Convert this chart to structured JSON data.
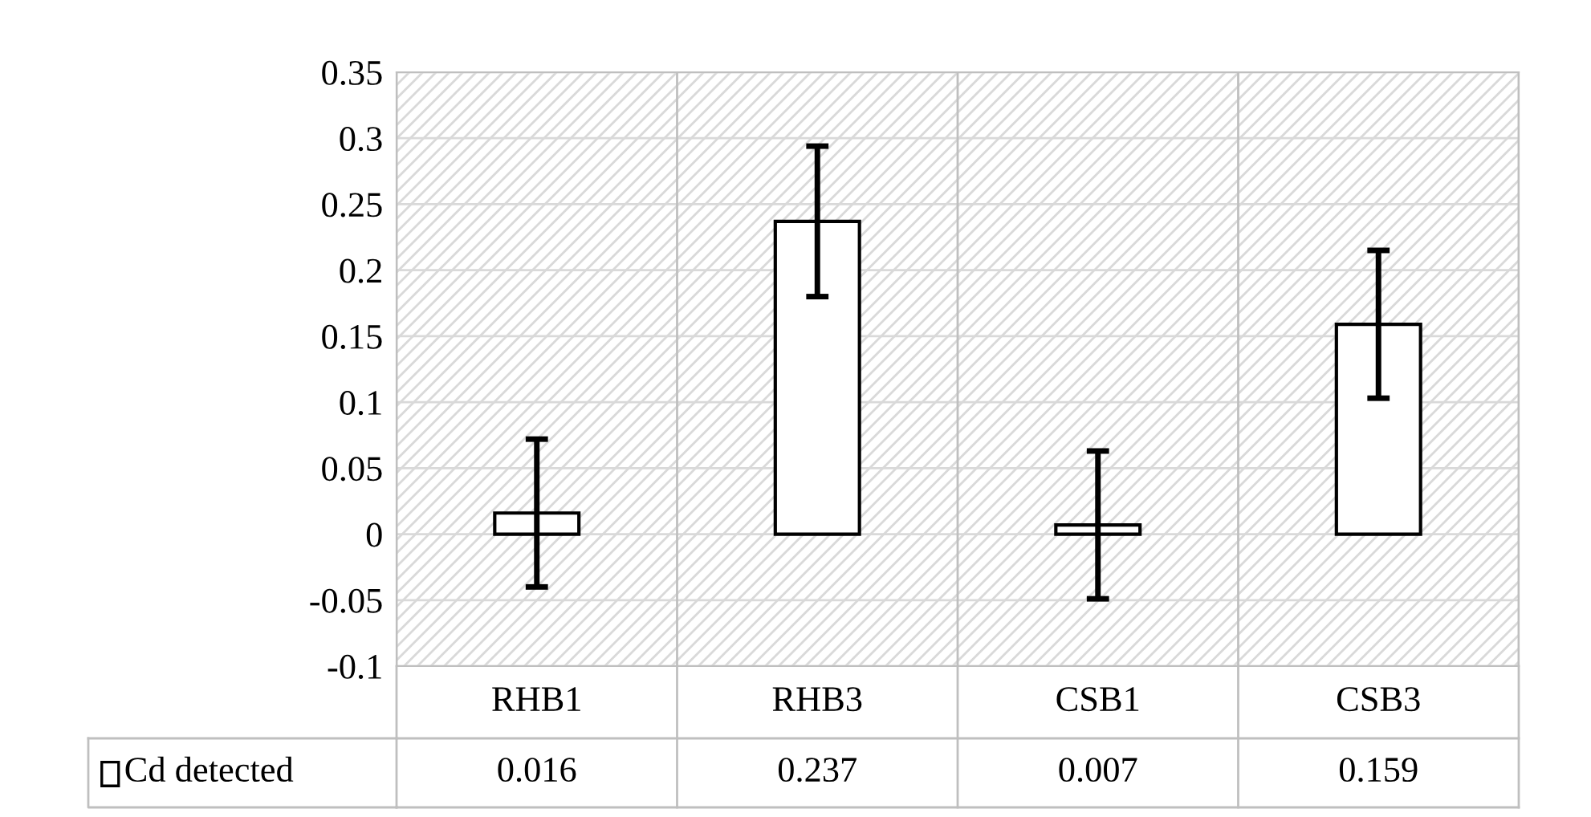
{
  "chart_data": {
    "type": "bar",
    "categories": [
      "RHB1",
      "RHB3",
      "CSB1",
      "CSB3"
    ],
    "series": [
      {
        "name": "Cd detected",
        "color": "#ffffff",
        "values": [
          0.016,
          0.237,
          0.007,
          0.159
        ],
        "errors": [
          0.056,
          0.057,
          0.056,
          0.056
        ]
      }
    ],
    "ylim": [
      -0.1,
      0.35
    ],
    "yticks": [
      -0.1,
      -0.05,
      0,
      0.05,
      0.1,
      0.15,
      0.2,
      0.25,
      0.3,
      0.35
    ],
    "grid": true,
    "legend": "bottom left",
    "data_labels": true
  }
}
